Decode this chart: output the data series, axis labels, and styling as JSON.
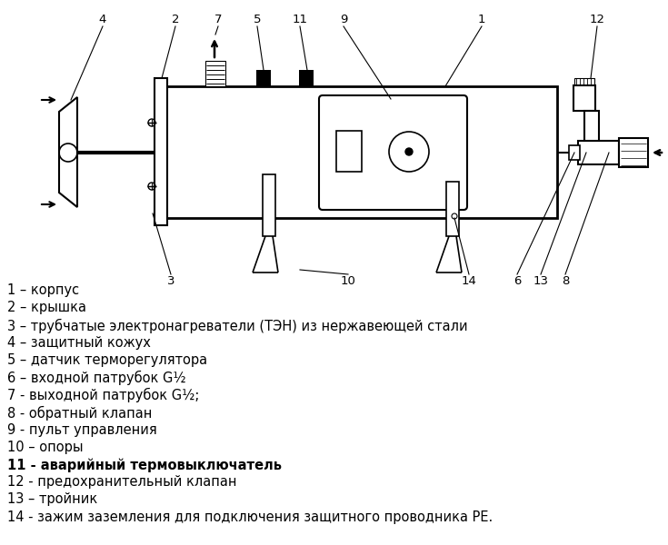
{
  "bg_color": "#ffffff",
  "line_color": "#000000",
  "labels": [
    "1 – корпус",
    "2 – крышка",
    "3 – трубчатые электронагреватели (ТЭН) из нержавеющей стали",
    "4 – защитный кожух",
    "5 – датчик терморегулятора",
    "6 – входной патрубок G½",
    "7 - выходной патрубок G½;",
    "8 - обратный клапан",
    "9 - пульт управления",
    "10 – опоры",
    "11 - аварийный термовыключатель",
    "12 - предохранительный клапан",
    "13 – тройник",
    "14 - зажим заземления для подключения защитного проводника PE."
  ],
  "bold_labels": [
    11
  ],
  "label_fontsize": 10.5
}
